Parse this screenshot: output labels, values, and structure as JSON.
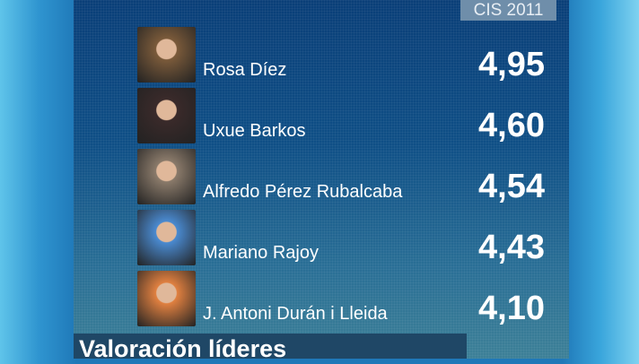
{
  "badge": "CIS 2011",
  "title": "Valoración líderes",
  "chart_data": {
    "type": "table",
    "title": "Valoración líderes",
    "source": "CIS 2011",
    "rows": [
      {
        "name": "Rosa Díez",
        "value": "4,95",
        "photo_color": "#7a5a3a"
      },
      {
        "name": "Uxue Barkos",
        "value": "4,60",
        "photo_color": "#3a2a2a"
      },
      {
        "name": "Alfredo Pérez Rubalcaba",
        "value": "4,54",
        "photo_color": "#8a7a6a"
      },
      {
        "name": "Mariano Rajoy",
        "value": "4,43",
        "photo_color": "#4a8ad0"
      },
      {
        "name": "J. Antoni Durán i Lleida",
        "value": "4,10",
        "photo_color": "#e08040"
      }
    ]
  }
}
